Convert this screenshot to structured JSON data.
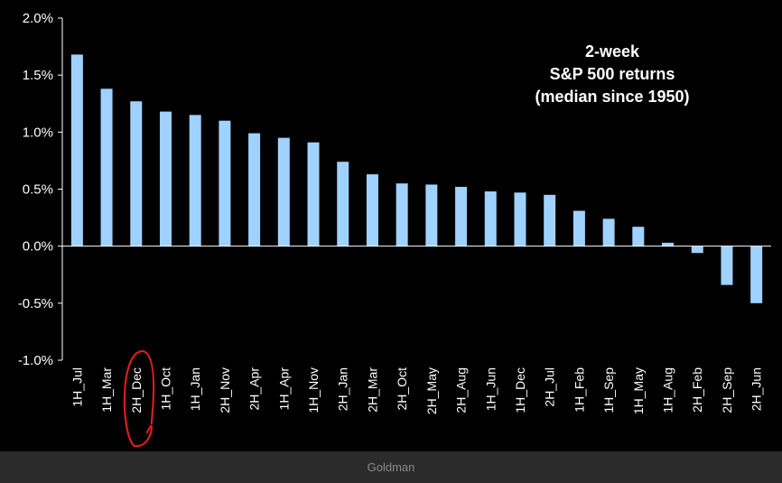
{
  "chart_data": {
    "type": "bar",
    "title_lines": [
      "2-week",
      "S&P 500 returns",
      "(median since 1950)"
    ],
    "categories": [
      "1H_Jul",
      "1H_Mar",
      "2H_Dec",
      "1H_Oct",
      "1H_Jan",
      "2H_Nov",
      "2H_Apr",
      "1H_Apr",
      "1H_Nov",
      "2H_Jan",
      "2H_Mar",
      "2H_Oct",
      "2H_May",
      "2H_Aug",
      "1H_Jun",
      "1H_Dec",
      "2H_Jul",
      "1H_Feb",
      "1H_Sep",
      "1H_May",
      "1H_Aug",
      "2H_Feb",
      "2H_Sep",
      "2H_Jun"
    ],
    "values": [
      1.68,
      1.38,
      1.27,
      1.18,
      1.15,
      1.1,
      0.99,
      0.95,
      0.91,
      0.74,
      0.63,
      0.55,
      0.54,
      0.52,
      0.48,
      0.47,
      0.45,
      0.31,
      0.24,
      0.17,
      0.03,
      -0.06,
      -0.34,
      -0.5
    ],
    "yticks": [
      "2.0%",
      "1.5%",
      "1.0%",
      "0.5%",
      "0.0%",
      "-0.5%",
      "-1.0%"
    ],
    "ylim": [
      -1.0,
      2.0
    ],
    "highlighted_category": "2H_Dec",
    "bar_color": "#9fd2ff",
    "highlight_color": "#d81e1e",
    "legend": "none",
    "grid": false
  },
  "caption": "Goldman"
}
